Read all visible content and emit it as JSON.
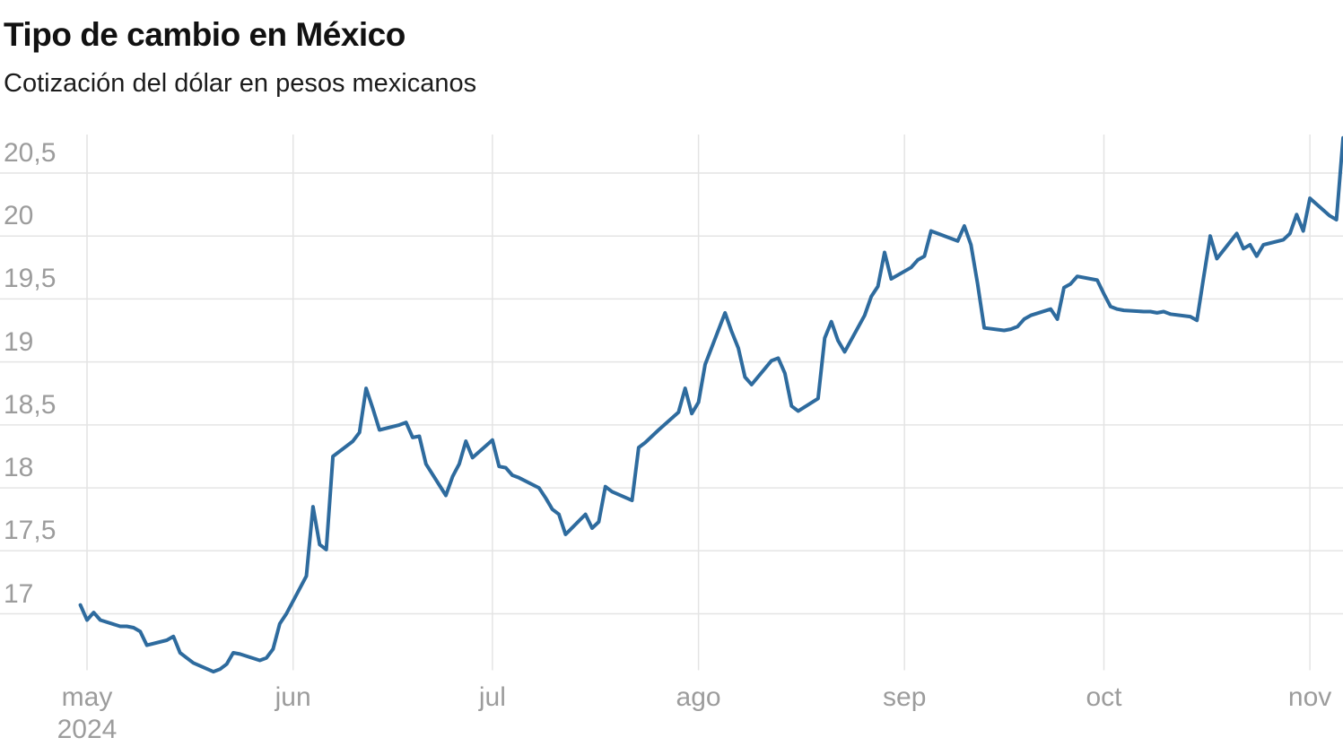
{
  "header": {
    "title": "Tipo de cambio en México",
    "subtitle": "Cotización del dólar en pesos mexicanos"
  },
  "chart_data": {
    "type": "line",
    "title": "Tipo de cambio en México",
    "subtitle": "Cotización del dólar en pesos mexicanos",
    "xlabel": "",
    "ylabel": "",
    "grid": true,
    "legend_position": "none",
    "decimal_separator": ",",
    "colors": {
      "line": "#2e6b9e",
      "grid": "#e4e4e4",
      "tick_text": "#9c9c9c",
      "title_text": "#111111",
      "subtitle_text": "#1c1c1c",
      "background": "#ffffff"
    },
    "y_axis": {
      "range": [
        16.52,
        20.82
      ],
      "ticks": [
        {
          "label": "20,5",
          "value": 20.5
        },
        {
          "label": "20",
          "value": 20.0
        },
        {
          "label": "19,5",
          "value": 19.5
        },
        {
          "label": "19",
          "value": 19.0
        },
        {
          "label": "18,5",
          "value": 18.5
        },
        {
          "label": "18",
          "value": 18.0
        },
        {
          "label": "17,5",
          "value": 17.5
        },
        {
          "label": "17",
          "value": 17.0
        }
      ]
    },
    "x_axis": {
      "start_date": "2024-04-30",
      "end_date": "2024-11-06",
      "year_label": "2024",
      "ticks": [
        {
          "label": "may",
          "day": 0
        },
        {
          "label": "jun",
          "day": 31
        },
        {
          "label": "jul",
          "day": 61
        },
        {
          "label": "ago",
          "day": 92
        },
        {
          "label": "sep",
          "day": 123
        },
        {
          "label": "oct",
          "day": 153
        },
        {
          "label": "nov",
          "day": 184
        }
      ]
    },
    "series": [
      {
        "name": "Cotización del dólar en pesos mexicanos",
        "points": [
          [
            "2024-04-30",
            17.07
          ],
          [
            "2024-05-01",
            16.95
          ],
          [
            "2024-05-02",
            17.01
          ],
          [
            "2024-05-03",
            16.95
          ],
          [
            "2024-05-06",
            16.9
          ],
          [
            "2024-05-07",
            16.9
          ],
          [
            "2024-05-08",
            16.89
          ],
          [
            "2024-05-09",
            16.86
          ],
          [
            "2024-05-10",
            16.75
          ],
          [
            "2024-05-13",
            16.79
          ],
          [
            "2024-05-14",
            16.82
          ],
          [
            "2024-05-15",
            16.69
          ],
          [
            "2024-05-16",
            16.65
          ],
          [
            "2024-05-17",
            16.61
          ],
          [
            "2024-05-20",
            16.54
          ],
          [
            "2024-05-21",
            16.56
          ],
          [
            "2024-05-22",
            16.6
          ],
          [
            "2024-05-23",
            16.69
          ],
          [
            "2024-05-24",
            16.68
          ],
          [
            "2024-05-27",
            16.63
          ],
          [
            "2024-05-28",
            16.65
          ],
          [
            "2024-05-29",
            16.72
          ],
          [
            "2024-05-30",
            16.92
          ],
          [
            "2024-05-31",
            17.0
          ],
          [
            "2024-06-03",
            17.3
          ],
          [
            "2024-06-04",
            17.85
          ],
          [
            "2024-06-05",
            17.55
          ],
          [
            "2024-06-06",
            17.51
          ],
          [
            "2024-06-07",
            18.25
          ],
          [
            "2024-06-10",
            18.37
          ],
          [
            "2024-06-11",
            18.44
          ],
          [
            "2024-06-12",
            18.79
          ],
          [
            "2024-06-13",
            18.63
          ],
          [
            "2024-06-14",
            18.46
          ],
          [
            "2024-06-17",
            18.5
          ],
          [
            "2024-06-18",
            18.52
          ],
          [
            "2024-06-19",
            18.4
          ],
          [
            "2024-06-20",
            18.41
          ],
          [
            "2024-06-21",
            18.19
          ],
          [
            "2024-06-24",
            17.94
          ],
          [
            "2024-06-25",
            18.09
          ],
          [
            "2024-06-26",
            18.19
          ],
          [
            "2024-06-27",
            18.37
          ],
          [
            "2024-06-28",
            18.24
          ],
          [
            "2024-07-01",
            18.38
          ],
          [
            "2024-07-02",
            18.17
          ],
          [
            "2024-07-03",
            18.16
          ],
          [
            "2024-07-04",
            18.1
          ],
          [
            "2024-07-05",
            18.08
          ],
          [
            "2024-07-08",
            18.0
          ],
          [
            "2024-07-09",
            17.92
          ],
          [
            "2024-07-10",
            17.83
          ],
          [
            "2024-07-11",
            17.79
          ],
          [
            "2024-07-12",
            17.63
          ],
          [
            "2024-07-15",
            17.79
          ],
          [
            "2024-07-16",
            17.68
          ],
          [
            "2024-07-17",
            17.73
          ],
          [
            "2024-07-18",
            18.01
          ],
          [
            "2024-07-19",
            17.97
          ],
          [
            "2024-07-22",
            17.9
          ],
          [
            "2024-07-23",
            18.32
          ],
          [
            "2024-07-24",
            18.36
          ],
          [
            "2024-07-25",
            18.41
          ],
          [
            "2024-07-26",
            18.46
          ],
          [
            "2024-07-29",
            18.6
          ],
          [
            "2024-07-30",
            18.79
          ],
          [
            "2024-07-31",
            18.59
          ],
          [
            "2024-08-01",
            18.68
          ],
          [
            "2024-08-02",
            18.98
          ],
          [
            "2024-08-05",
            19.39
          ],
          [
            "2024-08-06",
            19.24
          ],
          [
            "2024-08-07",
            19.11
          ],
          [
            "2024-08-08",
            18.88
          ],
          [
            "2024-08-09",
            18.82
          ],
          [
            "2024-08-12",
            19.01
          ],
          [
            "2024-08-13",
            19.03
          ],
          [
            "2024-08-14",
            18.91
          ],
          [
            "2024-08-15",
            18.65
          ],
          [
            "2024-08-16",
            18.61
          ],
          [
            "2024-08-19",
            18.71
          ],
          [
            "2024-08-20",
            19.19
          ],
          [
            "2024-08-21",
            19.32
          ],
          [
            "2024-08-22",
            19.17
          ],
          [
            "2024-08-23",
            19.08
          ],
          [
            "2024-08-26",
            19.37
          ],
          [
            "2024-08-27",
            19.52
          ],
          [
            "2024-08-28",
            19.6
          ],
          [
            "2024-08-29",
            19.87
          ],
          [
            "2024-08-30",
            19.66
          ],
          [
            "2024-09-02",
            19.75
          ],
          [
            "2024-09-03",
            19.81
          ],
          [
            "2024-09-04",
            19.84
          ],
          [
            "2024-09-05",
            20.04
          ],
          [
            "2024-09-06",
            20.02
          ],
          [
            "2024-09-09",
            19.96
          ],
          [
            "2024-09-10",
            20.08
          ],
          [
            "2024-09-11",
            19.93
          ],
          [
            "2024-09-12",
            19.62
          ],
          [
            "2024-09-13",
            19.27
          ],
          [
            "2024-09-16",
            19.25
          ],
          [
            "2024-09-17",
            19.26
          ],
          [
            "2024-09-18",
            19.28
          ],
          [
            "2024-09-19",
            19.34
          ],
          [
            "2024-09-20",
            19.37
          ],
          [
            "2024-09-23",
            19.42
          ],
          [
            "2024-09-24",
            19.34
          ],
          [
            "2024-09-25",
            19.59
          ],
          [
            "2024-09-26",
            19.62
          ],
          [
            "2024-09-27",
            19.68
          ],
          [
            "2024-09-30",
            19.65
          ],
          [
            "2024-10-01",
            19.54
          ],
          [
            "2024-10-02",
            19.44
          ],
          [
            "2024-10-03",
            19.42
          ],
          [
            "2024-10-04",
            19.41
          ],
          [
            "2024-10-07",
            19.4
          ],
          [
            "2024-10-08",
            19.4
          ],
          [
            "2024-10-09",
            19.39
          ],
          [
            "2024-10-10",
            19.4
          ],
          [
            "2024-10-11",
            19.38
          ],
          [
            "2024-10-14",
            19.36
          ],
          [
            "2024-10-15",
            19.33
          ],
          [
            "2024-10-16",
            19.67
          ],
          [
            "2024-10-17",
            20.0
          ],
          [
            "2024-10-18",
            19.82
          ],
          [
            "2024-10-21",
            20.02
          ],
          [
            "2024-10-22",
            19.9
          ],
          [
            "2024-10-23",
            19.93
          ],
          [
            "2024-10-24",
            19.84
          ],
          [
            "2024-10-25",
            19.93
          ],
          [
            "2024-10-28",
            19.97
          ],
          [
            "2024-10-29",
            20.02
          ],
          [
            "2024-10-30",
            20.17
          ],
          [
            "2024-10-31",
            20.04
          ],
          [
            "2024-11-01",
            20.3
          ],
          [
            "2024-11-04",
            20.16
          ],
          [
            "2024-11-05",
            20.13
          ],
          [
            "2024-11-06",
            20.78
          ]
        ]
      }
    ]
  }
}
